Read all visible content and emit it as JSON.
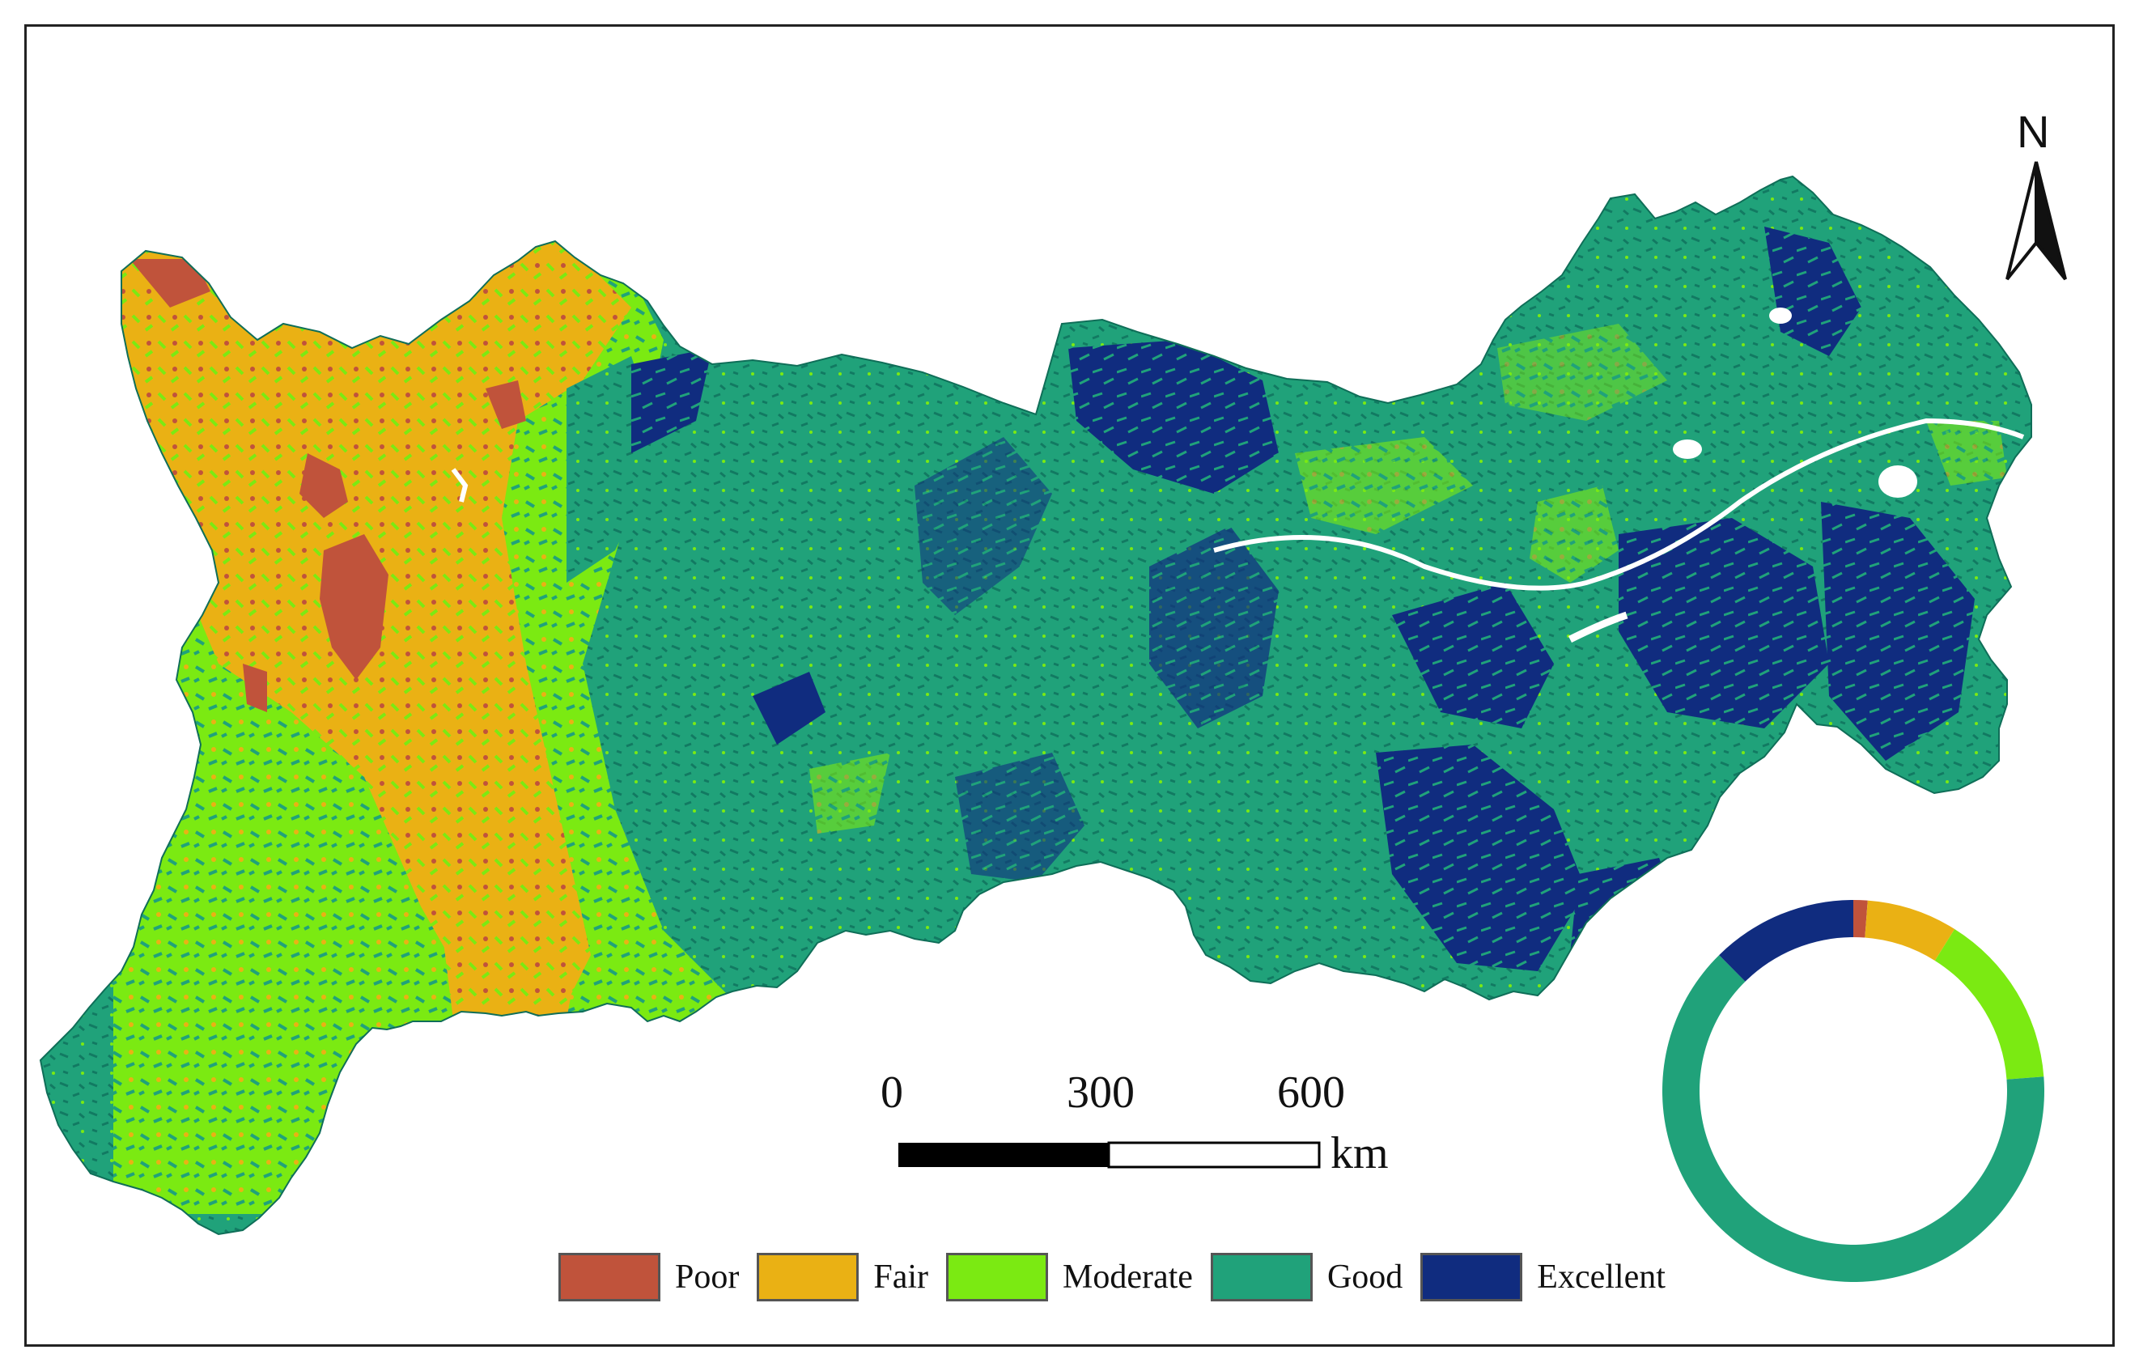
{
  "map": {
    "north_label": "N",
    "scale": {
      "ticks": [
        "0",
        "300",
        "600"
      ],
      "unit": "km"
    },
    "legend": [
      {
        "label": "Poor",
        "color": "#c0533b"
      },
      {
        "label": "Fair",
        "color": "#eab114"
      },
      {
        "label": "Moderate",
        "color": "#7bea12"
      },
      {
        "label": "Good",
        "color": "#20a27a"
      },
      {
        "label": "Excellent",
        "color": "#102c7f"
      }
    ]
  },
  "chart_data": {
    "type": "pie",
    "variant": "donut",
    "categories": [
      "Poor",
      "Fair",
      "Moderate",
      "Good",
      "Excellent"
    ],
    "values": [
      1.2,
      7.7,
      14.9,
      63.8,
      12.4
    ],
    "colors": [
      "#c0533b",
      "#eab114",
      "#7bea12",
      "#20a27a",
      "#102c7f"
    ]
  }
}
